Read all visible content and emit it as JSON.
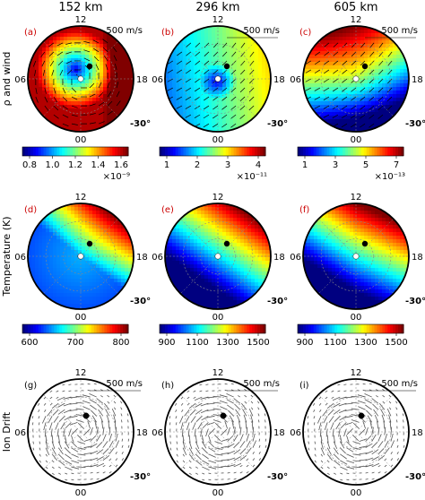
{
  "columns": [
    "152 km",
    "296 km",
    "605 km"
  ],
  "rows": [
    {
      "label": "ρ and wind"
    },
    {
      "label": "Temperature (K)"
    },
    {
      "label": "Ion Drift"
    }
  ],
  "panel_labels": [
    "(a)",
    "(b)",
    "(c)",
    "(d)",
    "(e)",
    "(f)",
    "(g)",
    "(h)",
    "(i)"
  ],
  "clock": {
    "top": "12",
    "bottom": "00",
    "left": "06",
    "right": "18"
  },
  "lat_label": "-30°",
  "scale_label": "500 m/s",
  "colorbars": {
    "row1": [
      {
        "ticks": [
          "0.8",
          "1.0",
          "1.2",
          "1.4",
          "1.6"
        ],
        "exp": "×10⁻⁹"
      },
      {
        "ticks": [
          "1",
          "2",
          "3",
          "4"
        ],
        "exp": "×10⁻¹¹"
      },
      {
        "ticks": [
          "1",
          "3",
          "5",
          "7"
        ],
        "exp": "×10⁻¹³"
      }
    ],
    "row2": [
      {
        "ticks": [
          "600",
          "700",
          "800"
        ]
      },
      {
        "ticks": [
          "900",
          "1100",
          "1300",
          "1500"
        ]
      },
      {
        "ticks": [
          "900",
          "1100",
          "1300",
          "1500"
        ]
      }
    ]
  },
  "colors": {
    "jet_low": "#00008f",
    "jet_high": "#7f0000"
  }
}
